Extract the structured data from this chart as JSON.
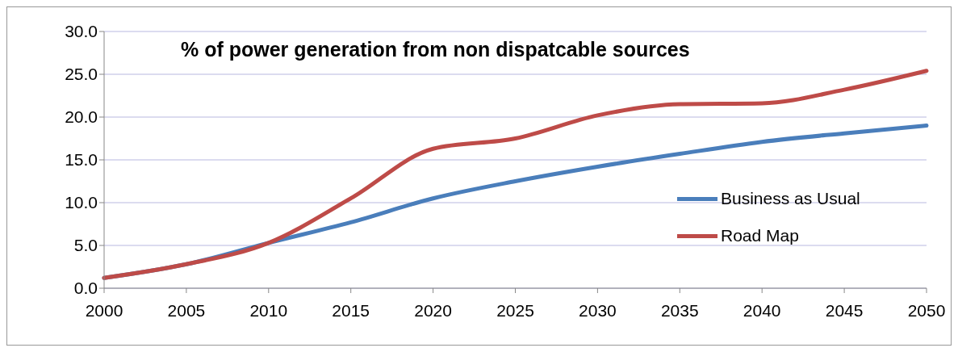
{
  "chart_data": {
    "type": "line",
    "title": "% of power generation from non dispatcable sources",
    "categories": [
      "2000",
      "2005",
      "2010",
      "2015",
      "2020",
      "2025",
      "2030",
      "2035",
      "2040",
      "2045",
      "2050"
    ],
    "series": [
      {
        "name": "Business as Usual",
        "color": "#4a7ebb",
        "values": [
          1.2,
          2.8,
          5.3,
          7.7,
          10.5,
          12.5,
          14.2,
          15.7,
          17.1,
          18.1,
          19.0
        ]
      },
      {
        "name": "Road Map",
        "color": "#be4b48",
        "values": [
          1.2,
          2.8,
          5.3,
          10.5,
          16.3,
          17.5,
          20.2,
          21.5,
          21.6,
          23.2,
          25.4
        ]
      }
    ],
    "ylim": [
      0,
      30
    ],
    "yticks": [
      {
        "value": 0,
        "label": "0.0"
      },
      {
        "value": 5,
        "label": "5.0"
      },
      {
        "value": 10,
        "label": "10.0"
      },
      {
        "value": 15,
        "label": "15.0"
      },
      {
        "value": 20,
        "label": "20.0"
      },
      {
        "value": 25,
        "label": "25.0"
      },
      {
        "value": 30,
        "label": "30.0"
      }
    ],
    "grid": "y",
    "legend": "right",
    "marker": "none",
    "line_style": "solid"
  }
}
